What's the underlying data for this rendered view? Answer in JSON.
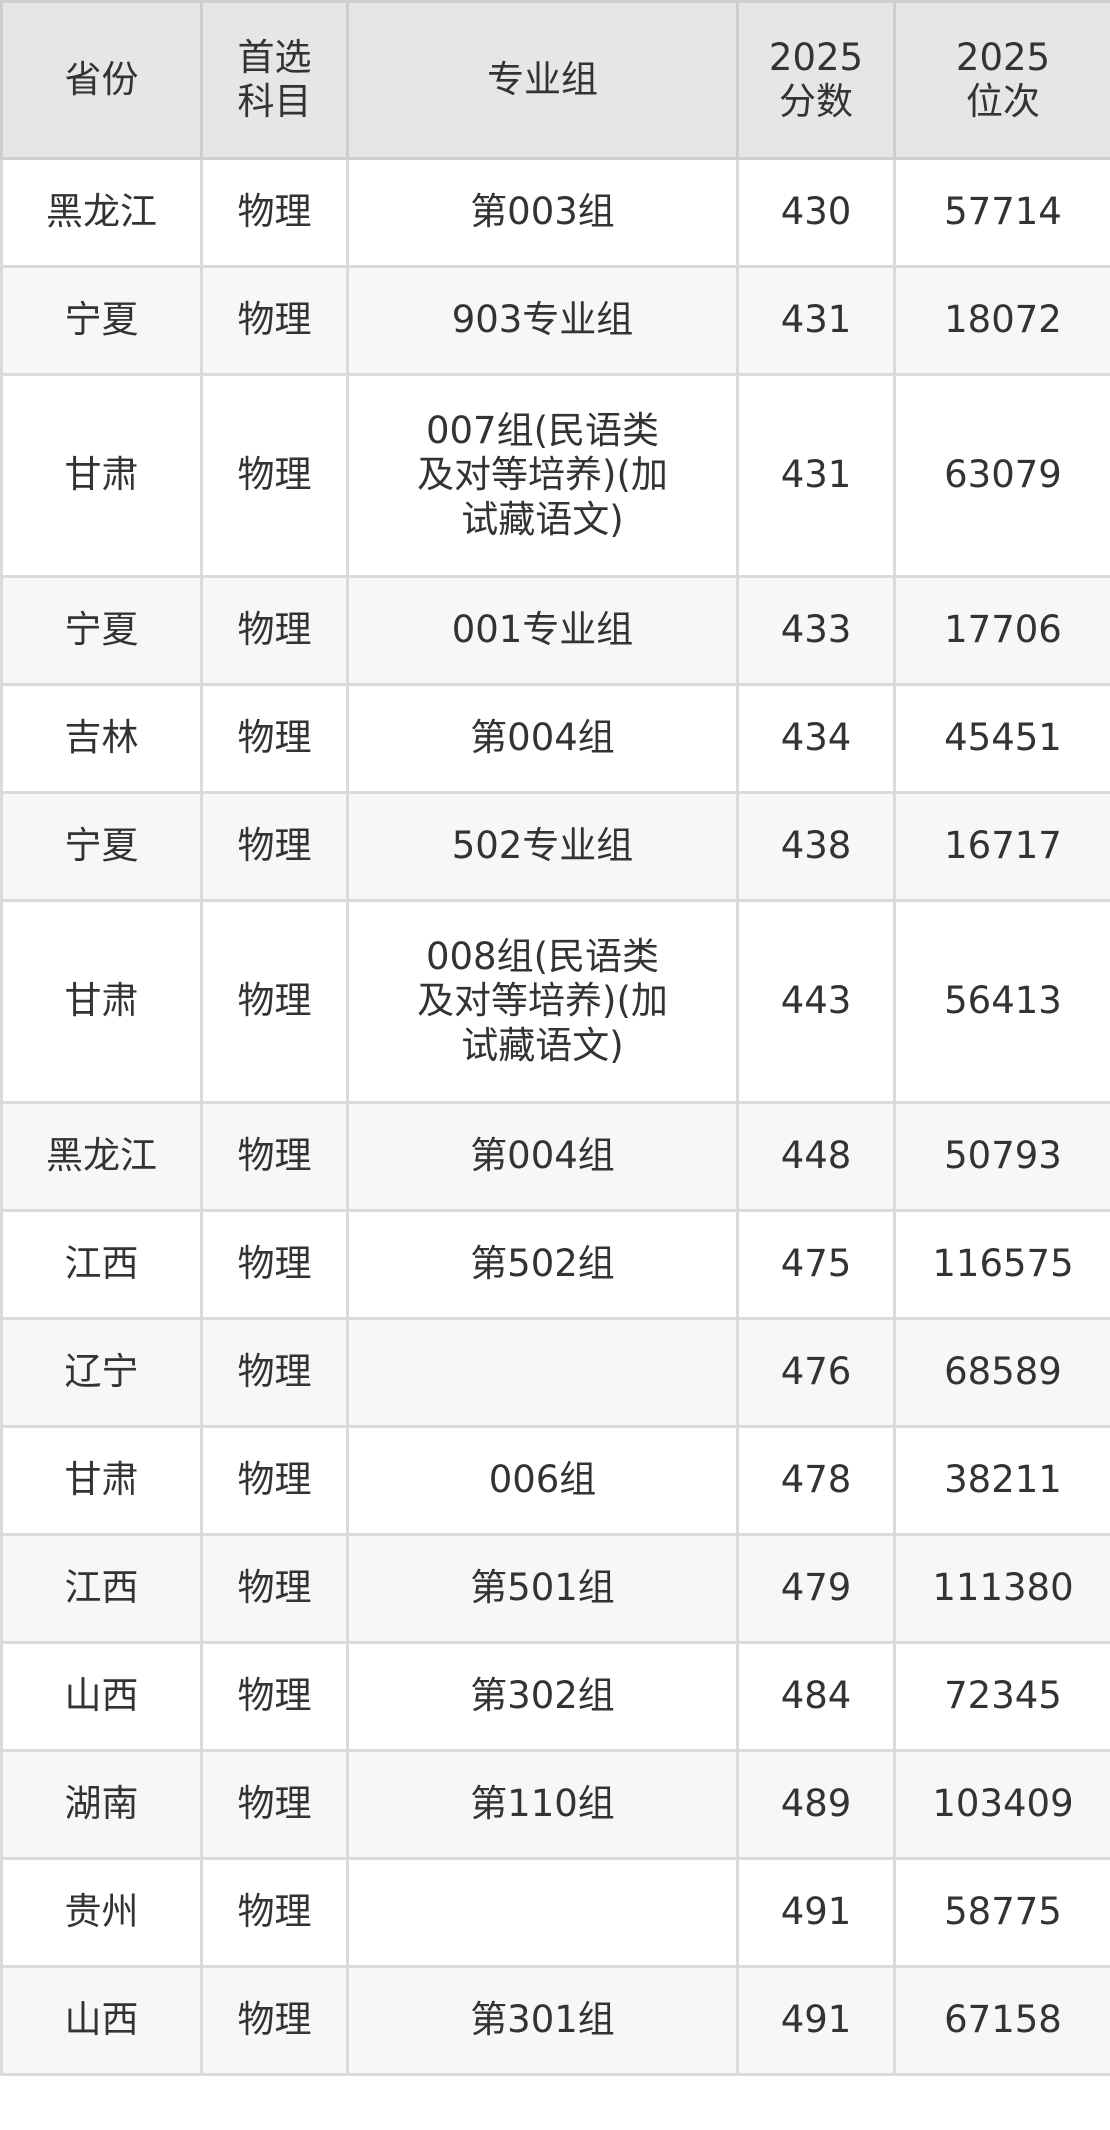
{
  "headers": [
    "省份",
    "首选\n科目",
    "专业组",
    "2025\n分数",
    "2025\n位次"
  ],
  "rows": [
    [
      "黑龙江",
      "物理",
      "第003组",
      "430",
      "57714"
    ],
    [
      "宁夏",
      "物理",
      "903专业组",
      "431",
      "18072"
    ],
    [
      "甘肃",
      "物理",
      "007组(民语类\n及对等培养)(加\n试藏语文)",
      "431",
      "63079"
    ],
    [
      "宁夏",
      "物理",
      "001专业组",
      "433",
      "17706"
    ],
    [
      "吉林",
      "物理",
      "第004组",
      "434",
      "45451"
    ],
    [
      "宁夏",
      "物理",
      "502专业组",
      "438",
      "16717"
    ],
    [
      "甘肃",
      "物理",
      "008组(民语类\n及对等培养)(加\n试藏语文)",
      "443",
      "56413"
    ],
    [
      "黑龙江",
      "物理",
      "第004组",
      "448",
      "50793"
    ],
    [
      "江西",
      "物理",
      "第502组",
      "475",
      "116575"
    ],
    [
      "辽宁",
      "物理",
      "",
      "476",
      "68589"
    ],
    [
      "甘肃",
      "物理",
      "006组",
      "478",
      "38211"
    ],
    [
      "江西",
      "物理",
      "第501组",
      "479",
      "111380"
    ],
    [
      "山西",
      "物理",
      "第302组",
      "484",
      "72345"
    ],
    [
      "湖南",
      "物理",
      "第110组",
      "489",
      "103409"
    ],
    [
      "贵州",
      "物理",
      "",
      "491",
      "58775"
    ],
    [
      "山西",
      "物理",
      "第301组",
      "491",
      "67158"
    ]
  ]
}
